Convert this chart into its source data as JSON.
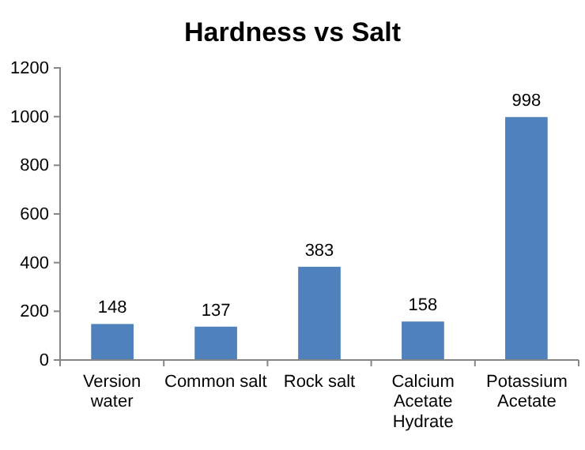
{
  "chart_data": {
    "type": "bar",
    "title": "Hardness vs Salt",
    "categories": [
      "Version water",
      "Common salt",
      "Rock salt",
      "Calcium Acetate Hydrate",
      "Potassium Acetate"
    ],
    "values": [
      148,
      137,
      383,
      158,
      998
    ],
    "color": "#4f81bd",
    "ylim": [
      0,
      1200
    ],
    "yticks": [
      0,
      200,
      400,
      600,
      800,
      1000,
      1200
    ],
    "grid": false,
    "data_labels": true
  }
}
